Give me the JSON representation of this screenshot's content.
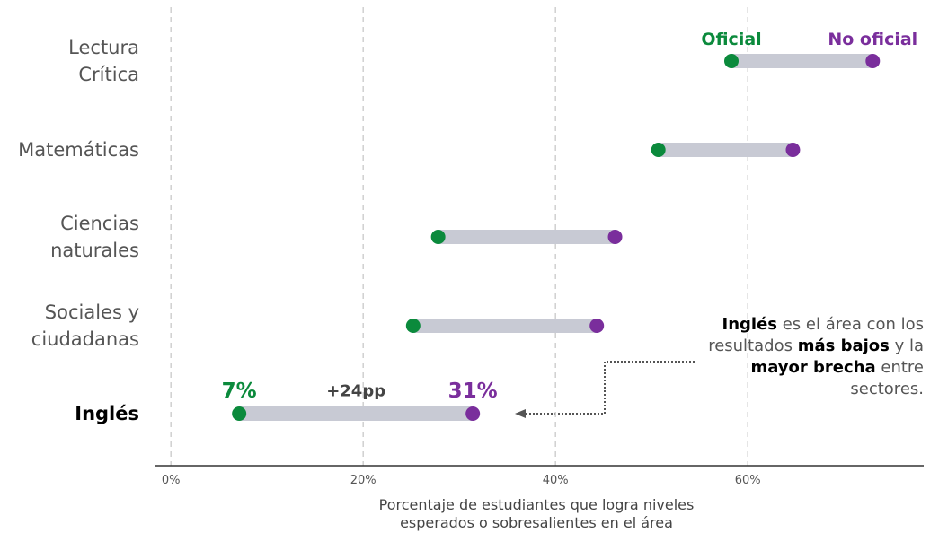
{
  "chart_data": {
    "type": "dumbbell",
    "categories": [
      "Lectura Crítica",
      "Matemáticas",
      "Ciencias naturales",
      "Sociales y ciudadanas",
      "Inglés"
    ],
    "series": [
      {
        "name": "Oficial",
        "color": "#0b8a3c",
        "values": [
          58.3,
          50.7,
          27.8,
          25.2,
          7.1
        ],
        "value_labels": [
          null,
          null,
          null,
          null,
          "7%"
        ]
      },
      {
        "name": "No oficial",
        "color": "#7a2e9c",
        "values": [
          73.0,
          64.7,
          46.2,
          44.3,
          31.4
        ],
        "value_labels": [
          null,
          null,
          null,
          null,
          "31%"
        ]
      }
    ],
    "gap_label": "+24pp",
    "xlim": [
      -1.7,
      78.3
    ],
    "xticks": [
      {
        "value": 0,
        "label": "0%"
      },
      {
        "value": 20,
        "label": "20%"
      },
      {
        "value": 40,
        "label": "40%"
      },
      {
        "value": 60,
        "label": "60%"
      }
    ],
    "grid": true,
    "xlabel": "Porcentaje de estudiantes que logra niveles esperados o sobresalientes en el área",
    "annotation": [
      {
        "text": "Inglés",
        "bold": true
      },
      {
        "text": " es el área con los resultados ",
        "bold": false
      },
      {
        "text": "más bajos",
        "bold": true
      },
      {
        "text": " y la ",
        "bold": false
      },
      {
        "text": "mayor brecha",
        "bold": true
      },
      {
        "text": " entre sectores.",
        "bold": false
      }
    ]
  }
}
